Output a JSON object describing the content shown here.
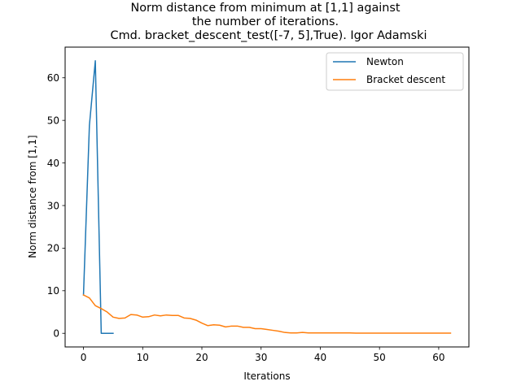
{
  "chart_data": {
    "type": "line",
    "title_lines": [
      "Norm distance from minimum at [1,1] against",
      "the number of iterations.",
      "Cmd. bracket_descent_test([-7, 5],True). Igor Adamski"
    ],
    "xlabel": "Iterations",
    "ylabel": "Norm distance from [1,1]",
    "xlim": [
      -3.1,
      65.1
    ],
    "ylim": [
      -3.2,
      67.2
    ],
    "xticks": [
      0,
      10,
      20,
      30,
      40,
      50,
      60
    ],
    "yticks": [
      0,
      10,
      20,
      30,
      40,
      50,
      60
    ],
    "grid": false,
    "legend_position": "upper-right",
    "series": [
      {
        "name": "Newton",
        "color": "#1f77b4",
        "x": [
          0,
          1,
          2,
          3,
          4,
          5
        ],
        "y": [
          9.0,
          48.8,
          64.0,
          0.0,
          0.0,
          0.0
        ]
      },
      {
        "name": "Bracket descent",
        "color": "#ff7f0e",
        "x": [
          0,
          1,
          2,
          3,
          4,
          5,
          6,
          7,
          8,
          9,
          10,
          11,
          12,
          13,
          14,
          15,
          16,
          17,
          18,
          19,
          20,
          21,
          22,
          23,
          24,
          25,
          26,
          27,
          28,
          29,
          30,
          31,
          32,
          33,
          34,
          35,
          36,
          37,
          38,
          39,
          40,
          41,
          42,
          43,
          44,
          45,
          46,
          47,
          48,
          49,
          50,
          51,
          52,
          53,
          54,
          55,
          56,
          57,
          58,
          59,
          60,
          61,
          62
        ],
        "y": [
          9.0,
          8.3,
          6.5,
          5.8,
          5.0,
          3.8,
          3.5,
          3.6,
          4.4,
          4.3,
          3.8,
          3.9,
          4.3,
          4.1,
          4.3,
          4.2,
          4.2,
          3.6,
          3.5,
          3.1,
          2.4,
          1.8,
          2.0,
          1.9,
          1.5,
          1.7,
          1.7,
          1.4,
          1.4,
          1.1,
          1.1,
          0.9,
          0.7,
          0.5,
          0.2,
          0.1,
          0.1,
          0.2,
          0.1,
          0.1,
          0.1,
          0.1,
          0.1,
          0.1,
          0.1,
          0.1,
          0.05,
          0.05,
          0.05,
          0.05,
          0.05,
          0.05,
          0.05,
          0.05,
          0.05,
          0.05,
          0.05,
          0.05,
          0.05,
          0.05,
          0.05,
          0.05,
          0.05
        ]
      }
    ]
  }
}
